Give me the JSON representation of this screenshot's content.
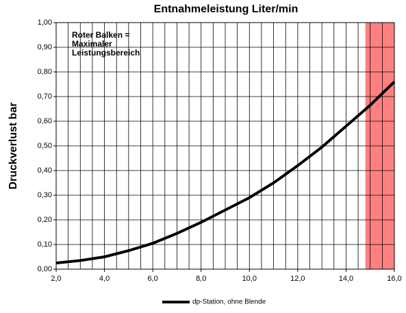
{
  "chart_data": {
    "type": "line",
    "title": "Entnahmeleistung Liter/min",
    "y_label": "Druckverlust bar",
    "annotation": [
      "Roter Balken =",
      "Maximaler",
      "Leistungsbereich"
    ],
    "x": [
      2,
      3,
      4,
      5,
      6,
      7,
      8,
      9,
      10,
      11,
      12,
      13,
      14,
      15,
      16
    ],
    "series": [
      {
        "name": "dp-Station, ohne Blende",
        "color": "#000000",
        "values": [
          0.025,
          0.035,
          0.05,
          0.075,
          0.105,
          0.145,
          0.19,
          0.24,
          0.29,
          0.35,
          0.42,
          0.495,
          0.58,
          0.665,
          0.76
        ]
      }
    ],
    "xlim": [
      2,
      16
    ],
    "ylim": [
      0,
      1
    ],
    "xticks": [
      {
        "value": 2,
        "label": "2,0"
      },
      {
        "value": 4,
        "label": "4,0"
      },
      {
        "value": 6,
        "label": "6,0"
      },
      {
        "value": 8,
        "label": "8,0"
      },
      {
        "value": 10,
        "label": "10,0"
      },
      {
        "value": 12,
        "label": "12,0"
      },
      {
        "value": 14,
        "label": "14,0"
      },
      {
        "value": 16,
        "label": "16,0"
      }
    ],
    "yticks": [
      {
        "value": 0,
        "label": "0,00"
      },
      {
        "value": 0.1,
        "label": "0,10"
      },
      {
        "value": 0.2,
        "label": "0,20"
      },
      {
        "value": 0.3,
        "label": "0,30"
      },
      {
        "value": 0.4,
        "label": "0,40"
      },
      {
        "value": 0.5,
        "label": "0,50"
      },
      {
        "value": 0.6,
        "label": "0,60"
      },
      {
        "value": 0.7,
        "label": "0,70"
      },
      {
        "value": 0.8,
        "label": "0,80"
      },
      {
        "value": 0.9,
        "label": "0,90"
      },
      {
        "value": 1,
        "label": "1,00"
      }
    ],
    "x_grid": [
      2.5,
      3,
      3.5,
      4,
      4.5,
      5,
      5.5,
      6,
      6.5,
      7,
      7.5,
      8,
      8.5,
      9,
      9.5,
      10,
      10.5,
      11,
      11.5,
      12,
      12.5,
      13,
      13.5,
      14,
      14.5,
      15,
      15.5
    ],
    "highlight_band": [
      14.8,
      16
    ],
    "highlight_color": "#ff8080",
    "grid": true,
    "legend": "bottom"
  }
}
